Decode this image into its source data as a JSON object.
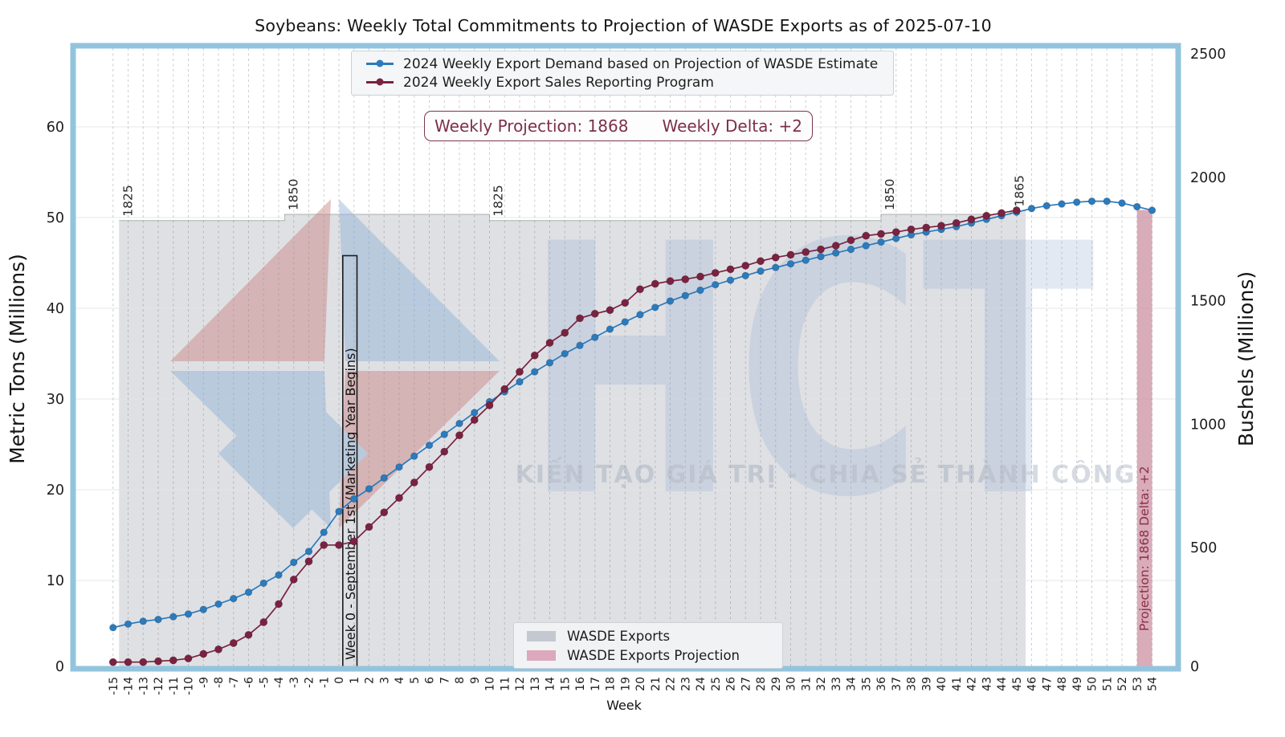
{
  "title": "Soybeans: Weekly Total Commitments to Projection of WASDE Exports as of 2025-07-10",
  "top_legend": {
    "series1": "2024 Weekly Export Demand based on Projection of WASDE Estimate",
    "series2": "2024 Weekly Export Sales Reporting Program"
  },
  "annotation": {
    "projection": "Weekly Projection: 1868",
    "delta": "Weekly Delta: +2"
  },
  "axes": {
    "x_label": "Week",
    "y_left_label": "Metric Tons (Millions)",
    "y_right_label": "Bushels (Millions)",
    "y_left_ticks": [
      0,
      10,
      20,
      30,
      40,
      50,
      60
    ],
    "y_right_ticks": [
      0,
      500,
      1000,
      1500,
      2000,
      2500
    ]
  },
  "bottom_legend": {
    "wasde": "WASDE Exports",
    "wasde_projection": "WASDE Exports Projection"
  },
  "week0_box_label": "Week 0 - September 1st (Marketing Year Begins)",
  "projection_bar_label": "Projection: 1868   Delta: +2",
  "watermark": {
    "brand": "HCT",
    "slogan": "KIẾN TẠO GIÁ TRỊ - CHIA SẺ THÀNH CÔNG"
  },
  "colors": {
    "demand_line": "#2b7bbd",
    "sales_line": "#7a2240",
    "wasde_band": "#aeb2bc",
    "projection_bar": "#c2798f",
    "frame": "#93c4de",
    "annotation_red": "#7d3648"
  },
  "chart_data": {
    "type": "line",
    "title": "Soybeans: Weekly Total Commitments to Projection of WASDE Exports as of 2025-07-10",
    "xlabel": "Week",
    "ylabel_left": "Metric Tons (Millions)",
    "ylabel_right": "Bushels (Millions)",
    "ylim_metric_tons": [
      0,
      68
    ],
    "y2lim_bushels": [
      0,
      2500
    ],
    "x_range": [
      -15,
      54
    ],
    "grid": true,
    "series": [
      {
        "name": "2024 Weekly Export Demand based on Projection of WASDE Estimate",
        "color": "#2b7bbd",
        "x_start": -15,
        "values": [
          4.8,
          5.2,
          5.5,
          5.7,
          6.0,
          6.3,
          6.8,
          7.4,
          8.0,
          8.7,
          9.7,
          10.6,
          12.0,
          13.2,
          15.3,
          17.6,
          19.0,
          20.1,
          21.3,
          22.5,
          23.7,
          24.9,
          26.1,
          27.3,
          28.5,
          29.7,
          30.8,
          31.9,
          33.0,
          34.0,
          35.0,
          35.9,
          36.8,
          37.7,
          38.5,
          39.3,
          40.1,
          40.8,
          41.4,
          42.0,
          42.6,
          43.1,
          43.6,
          44.1,
          44.5,
          44.9,
          45.3,
          45.7,
          46.1,
          46.5,
          46.9,
          47.3,
          47.7,
          48.1,
          48.4,
          48.7,
          49.0,
          49.4,
          49.8,
          50.2,
          50.6,
          51.0,
          51.3,
          51.5,
          51.7,
          51.8,
          51.8,
          51.6,
          51.2,
          50.8
        ]
      },
      {
        "name": "2024 Weekly Export Sales Reporting Program",
        "color": "#7a2240",
        "x_start": -15,
        "values": [
          1.0,
          1.0,
          1.0,
          1.1,
          1.2,
          1.4,
          1.9,
          2.4,
          3.1,
          4.0,
          5.4,
          7.4,
          10.1,
          12.1,
          13.9,
          13.9,
          14.3,
          15.9,
          17.5,
          19.1,
          20.8,
          22.5,
          24.2,
          26.0,
          27.7,
          29.3,
          31.1,
          33.0,
          34.8,
          36.2,
          37.3,
          38.9,
          39.4,
          39.8,
          40.6,
          42.1,
          42.7,
          43.0,
          43.2,
          43.5,
          43.9,
          44.3,
          44.7,
          45.2,
          45.6,
          45.9,
          46.2,
          46.5,
          46.9,
          47.5,
          48.0,
          48.2,
          48.4,
          48.7,
          48.9,
          49.1,
          49.4,
          49.8,
          50.2,
          50.5,
          50.8
        ]
      }
    ],
    "wasde_bands": [
      {
        "from_week": -14.6,
        "to_week": -3.6,
        "bushels": 1825
      },
      {
        "from_week": -3.6,
        "to_week": 10.0,
        "bushels": 1850
      },
      {
        "from_week": 10.0,
        "to_week": 36.0,
        "bushels": 1825
      },
      {
        "from_week": 36.0,
        "to_week": 44.6,
        "bushels": 1850
      },
      {
        "from_week": 44.6,
        "to_week": 45.6,
        "bushels": 1865
      }
    ],
    "projection_bar": {
      "from_week": 53.0,
      "to_week": 54.0,
      "bushels": 1868,
      "delta": 2
    },
    "week0_box": {
      "from_week": 0.15,
      "to_week": 1.2,
      "top_metric_tons": 45.8
    },
    "bushels_to_metric_tons": 0.0272155
  }
}
